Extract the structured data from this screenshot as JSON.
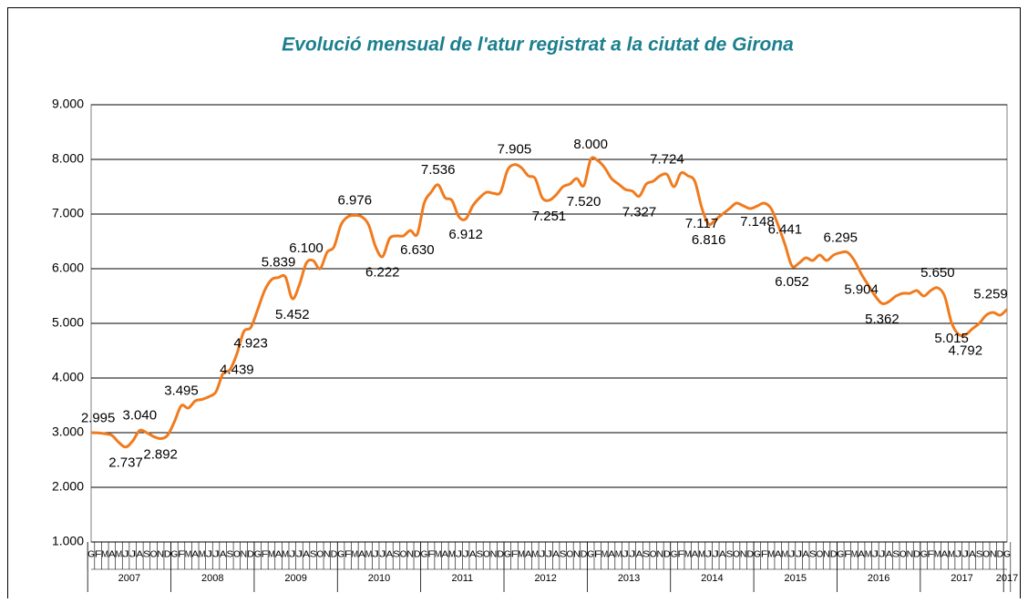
{
  "chart_data": {
    "type": "line",
    "title": "Evolució mensual de l'atur registrat a la ciutat de Girona",
    "categories": [
      "G",
      "F",
      "M",
      "A",
      "M",
      "J",
      "J",
      "A",
      "S",
      "O",
      "N",
      "D",
      "G",
      "F",
      "M",
      "A",
      "M",
      "J",
      "J",
      "A",
      "S",
      "O",
      "N",
      "D",
      "G",
      "F",
      "M",
      "A",
      "M",
      "J",
      "J",
      "A",
      "S",
      "O",
      "N",
      "D",
      "G",
      "F",
      "M",
      "A",
      "M",
      "J",
      "J",
      "A",
      "S",
      "O",
      "N",
      "D",
      "G",
      "F",
      "M",
      "A",
      "M",
      "J",
      "J",
      "A",
      "S",
      "O",
      "N",
      "D",
      "G",
      "F",
      "M",
      "A",
      "M",
      "J",
      "J",
      "A",
      "S",
      "O",
      "N",
      "D",
      "G",
      "F",
      "M",
      "A",
      "M",
      "J",
      "J",
      "A",
      "S",
      "O",
      "N",
      "D",
      "G",
      "F",
      "M",
      "A",
      "M",
      "J",
      "J",
      "A",
      "S",
      "O",
      "N",
      "D",
      "G",
      "F",
      "M",
      "A",
      "M",
      "J",
      "J",
      "A",
      "S",
      "O",
      "N",
      "D",
      "G",
      "F",
      "M",
      "A",
      "M",
      "J",
      "J",
      "A",
      "S",
      "O",
      "N",
      "D",
      "G",
      "F",
      "M",
      "A",
      "M",
      "J",
      "J",
      "A",
      "S",
      "O",
      "N",
      "D",
      "G"
    ],
    "x_groups": [
      "2007",
      "2008",
      "2009",
      "2010",
      "2011",
      "2012",
      "2013",
      "2014",
      "2015",
      "2016",
      "2017",
      "2017"
    ],
    "series": [
      {
        "name": "Atur registrat",
        "color": "#f07b1e",
        "values": [
          3000,
          2995,
          2980,
          2950,
          2820,
          2737,
          2850,
          3040,
          3000,
          2930,
          2892,
          2950,
          3200,
          3495,
          3450,
          3580,
          3610,
          3660,
          3750,
          4080,
          4150,
          4439,
          4850,
          4923,
          5250,
          5600,
          5800,
          5839,
          5850,
          5452,
          5700,
          6100,
          6150,
          6000,
          6300,
          6400,
          6800,
          6950,
          6976,
          6950,
          6800,
          6400,
          6222,
          6550,
          6600,
          6600,
          6700,
          6630,
          7200,
          7400,
          7536,
          7300,
          7250,
          6950,
          6912,
          7150,
          7300,
          7400,
          7380,
          7400,
          7800,
          7905,
          7850,
          7700,
          7650,
          7300,
          7251,
          7350,
          7500,
          7550,
          7650,
          7520,
          8000,
          7980,
          7850,
          7650,
          7550,
          7450,
          7420,
          7327,
          7550,
          7600,
          7700,
          7724,
          7500,
          7750,
          7700,
          7600,
          7117,
          6816,
          6900,
          7000,
          7100,
          7200,
          7150,
          7100,
          7148,
          7200,
          7100,
          6800,
          6441,
          6052,
          6100,
          6200,
          6150,
          6250,
          6150,
          6250,
          6295,
          6300,
          6150,
          5904,
          5700,
          5500,
          5362,
          5400,
          5500,
          5550,
          5550,
          5600,
          5500,
          5600,
          5650,
          5500,
          5015,
          4800,
          4792,
          4900,
          5000,
          5150,
          5200,
          5150,
          5259
        ],
        "value_labels": [
          null,
          "2.995",
          null,
          null,
          null,
          "2.737",
          null,
          "3.040",
          null,
          null,
          "2.892",
          null,
          null,
          "3.495",
          null,
          null,
          null,
          null,
          null,
          null,
          null,
          "4.439",
          null,
          "4.923",
          null,
          null,
          null,
          "5.839",
          null,
          "5.452",
          null,
          "6.100",
          null,
          null,
          null,
          null,
          null,
          null,
          "6.976",
          null,
          null,
          null,
          "6.222",
          null,
          null,
          null,
          null,
          "6.630",
          null,
          null,
          "7.536",
          null,
          null,
          null,
          "6.912",
          null,
          null,
          null,
          null,
          null,
          null,
          "7.905",
          null,
          null,
          null,
          null,
          "7.251",
          null,
          null,
          null,
          null,
          "7.520",
          "8.000",
          null,
          null,
          null,
          null,
          null,
          null,
          "7.327",
          null,
          null,
          null,
          "7.724",
          null,
          null,
          null,
          null,
          "7.117",
          "6.816",
          null,
          null,
          null,
          null,
          null,
          null,
          "7.148",
          null,
          null,
          null,
          "6.441",
          "6.052",
          null,
          null,
          null,
          null,
          null,
          null,
          "6.295",
          null,
          null,
          "5.904",
          null,
          null,
          "5.362",
          null,
          null,
          null,
          null,
          null,
          null,
          null,
          "5.650",
          null,
          "5.015",
          null,
          "4.792",
          null,
          null,
          null,
          null,
          null,
          "5.259"
        ]
      }
    ],
    "ylim": [
      1000,
      9000
    ],
    "yticks": [
      {
        "value": 1000,
        "label": "1.000"
      },
      {
        "value": 2000,
        "label": "2.000"
      },
      {
        "value": 3000,
        "label": "3.000"
      },
      {
        "value": 4000,
        "label": "4.000"
      },
      {
        "value": 5000,
        "label": "5.000"
      },
      {
        "value": 6000,
        "label": "6.000"
      },
      {
        "value": 7000,
        "label": "7.000"
      },
      {
        "value": 8000,
        "label": "8.000"
      },
      {
        "value": 9000,
        "label": "9.000"
      }
    ],
    "grid": true
  }
}
